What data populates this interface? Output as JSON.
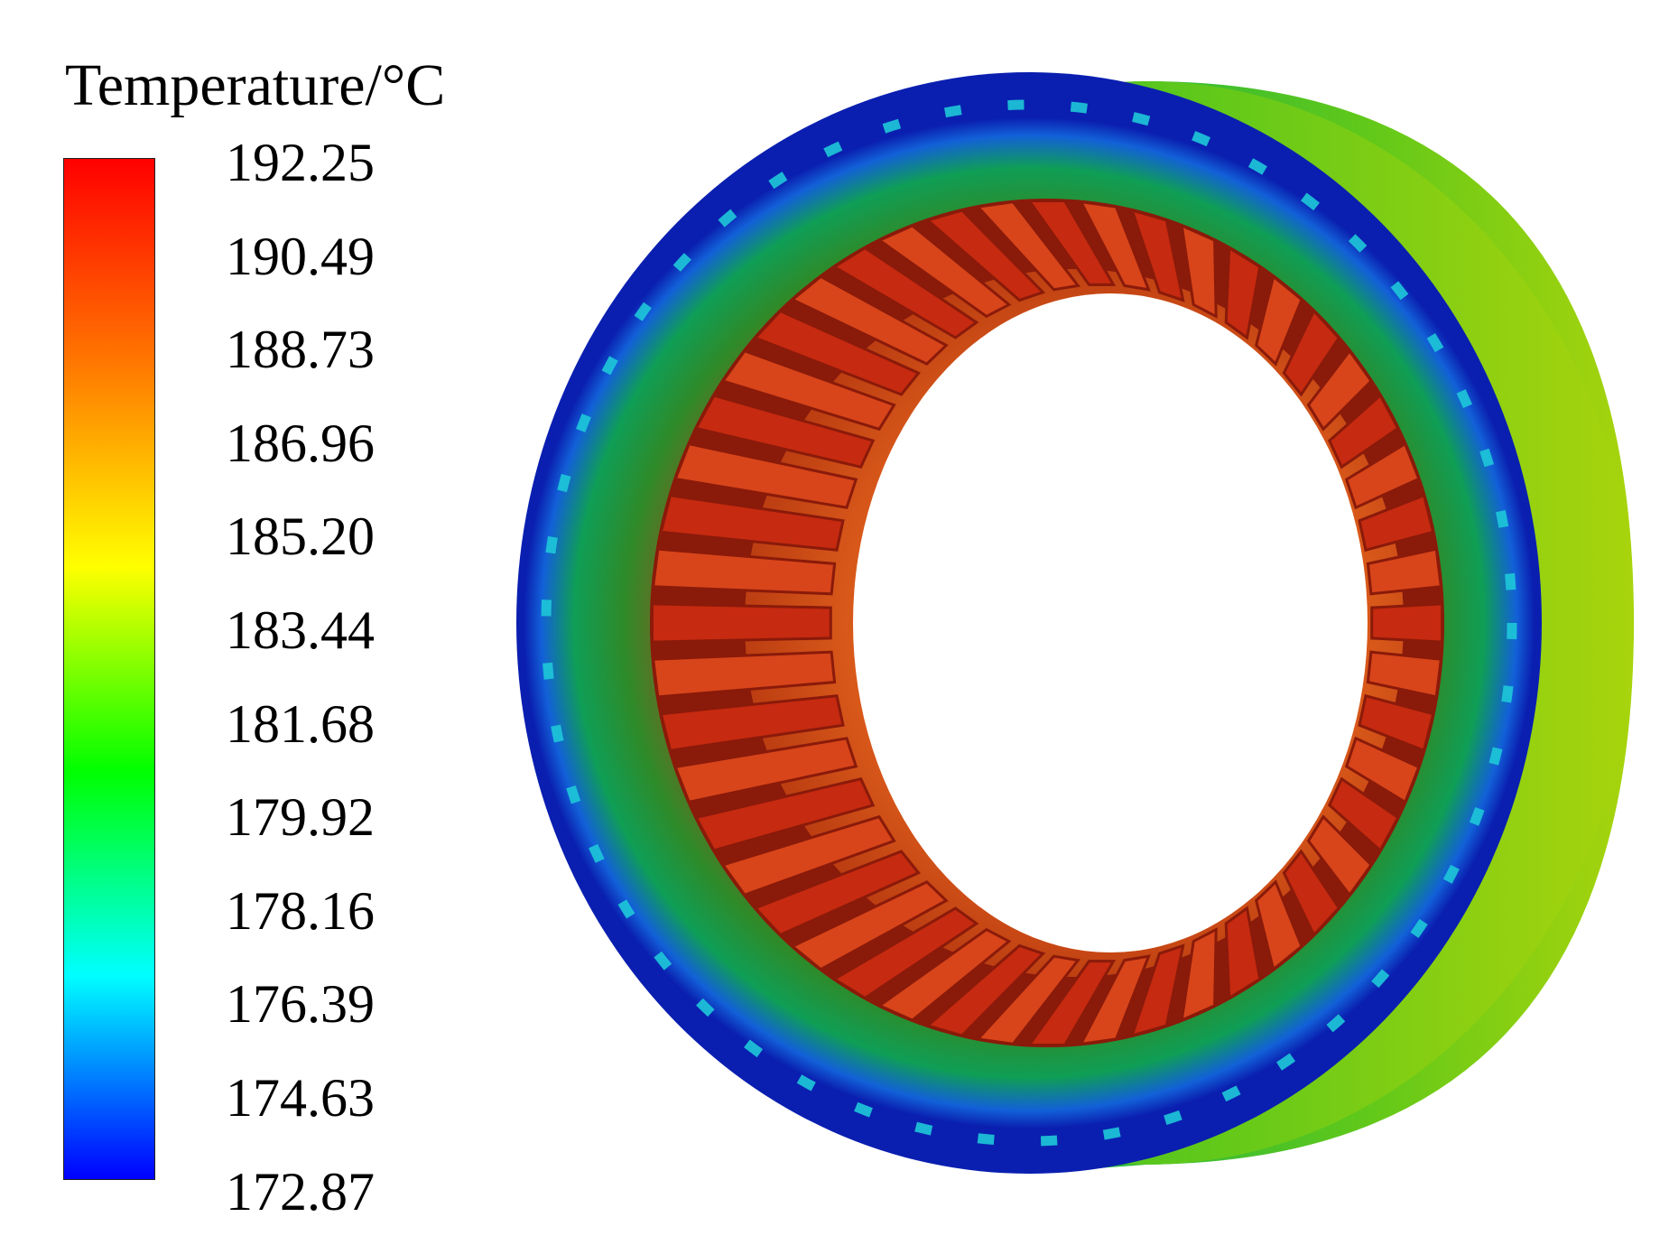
{
  "legend": {
    "title": "Temperature/°C",
    "ticks": [
      "192.25",
      "190.49",
      "188.73",
      "186.96",
      "185.20",
      "183.44",
      "181.68",
      "179.92",
      "178.16",
      "176.39",
      "174.63",
      "172.87"
    ],
    "colormap": [
      "#ff0000",
      "#ff7700",
      "#ffff00",
      "#00ff00",
      "#00ffff",
      "#0000ff"
    ]
  },
  "model": {
    "slot_count": 48,
    "colors": {
      "winding": "#c62a10",
      "winding_dark": "#8a1a0a",
      "yoke_inner": "#8a5a22",
      "yoke_outer": "#1a8a2a",
      "housing_front": "#0a2fd6",
      "housing_side": "#5fc81a",
      "cooling_channel": "#20d8c0"
    }
  }
}
